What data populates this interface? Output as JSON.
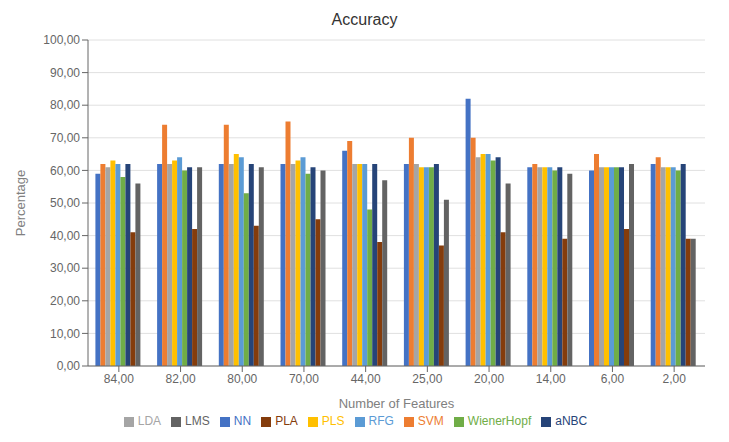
{
  "chart_data": {
    "type": "bar",
    "title": "Accuracy",
    "xlabel": "Number of Features",
    "ylabel": "Percentage",
    "categories": [
      "84,00",
      "82,00",
      "80,00",
      "70,00",
      "44,00",
      "25,00",
      "20,00",
      "14,00",
      "6,00",
      "2,00"
    ],
    "series": [
      {
        "name": "NN",
        "color": "#4472C4",
        "values": [
          59,
          62,
          62,
          62,
          66,
          62,
          82,
          61,
          60,
          62
        ]
      },
      {
        "name": "SVM",
        "color": "#ED7D31",
        "values": [
          62,
          74,
          74,
          75,
          69,
          70,
          70,
          62,
          65,
          64
        ]
      },
      {
        "name": "LDA",
        "color": "#A5A5A5",
        "values": [
          61,
          62,
          62,
          62,
          62,
          62,
          64,
          61,
          61,
          61
        ]
      },
      {
        "name": "PLS",
        "color": "#FFC000",
        "values": [
          63,
          63,
          65,
          63,
          62,
          61,
          65,
          61,
          61,
          61
        ]
      },
      {
        "name": "RFG",
        "color": "#5B9BD5",
        "values": [
          62,
          64,
          64,
          64,
          62,
          61,
          65,
          61,
          61,
          61
        ]
      },
      {
        "name": "WienerHopf",
        "color": "#70AD47",
        "values": [
          58,
          60,
          53,
          59,
          48,
          61,
          63,
          60,
          61,
          60
        ]
      },
      {
        "name": "aNBC",
        "color": "#264478",
        "values": [
          62,
          61,
          62,
          61,
          62,
          62,
          64,
          61,
          61,
          62
        ]
      },
      {
        "name": "PLA",
        "color": "#843C0C",
        "values": [
          41,
          42,
          43,
          45,
          38,
          37,
          41,
          39,
          42,
          39
        ]
      },
      {
        "name": "LMS",
        "color": "#636363",
        "values": [
          56,
          61,
          61,
          60,
          57,
          51,
          56,
          59,
          62,
          39
        ]
      }
    ],
    "ylim": [
      0,
      100
    ],
    "yticks": [
      {
        "value": 0,
        "label": "0,00"
      },
      {
        "value": 10,
        "label": "10,00"
      },
      {
        "value": 20,
        "label": "20,00"
      },
      {
        "value": 30,
        "label": "30,00"
      },
      {
        "value": 40,
        "label": "40,00"
      },
      {
        "value": 50,
        "label": "50,00"
      },
      {
        "value": 60,
        "label": "60,00"
      },
      {
        "value": 70,
        "label": "70,00"
      },
      {
        "value": 80,
        "label": "80,00"
      },
      {
        "value": 90,
        "label": "90,00"
      },
      {
        "value": 100,
        "label": "100,00"
      }
    ],
    "grid": true,
    "legend": "bottom"
  }
}
